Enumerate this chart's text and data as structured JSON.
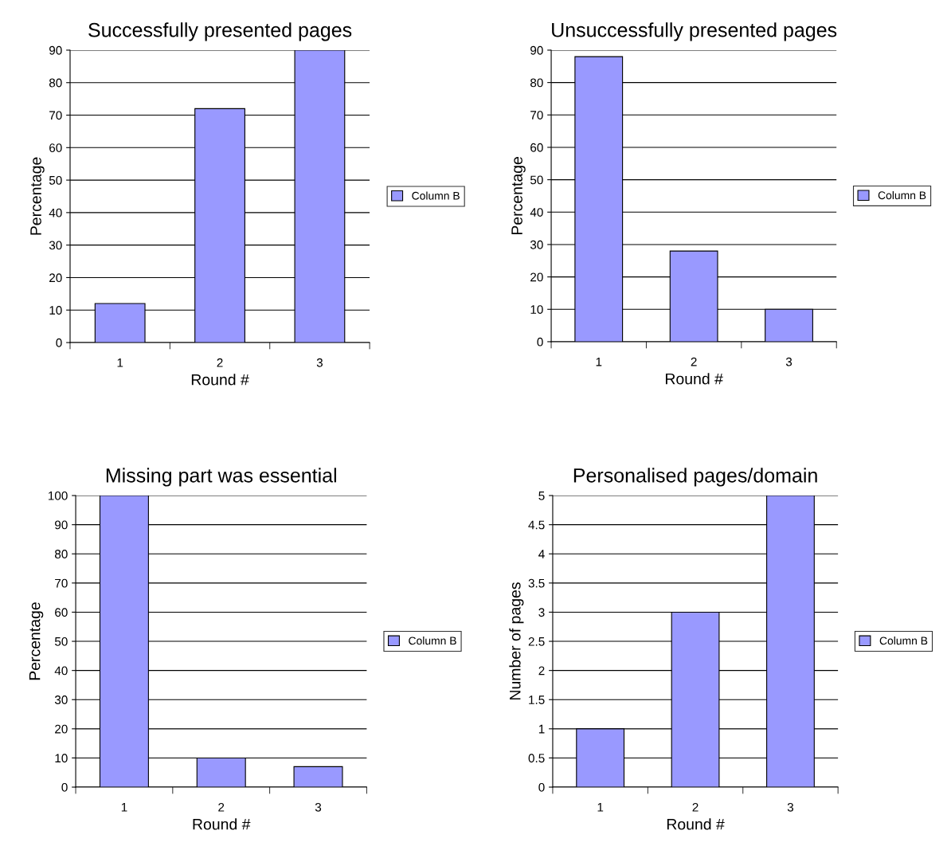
{
  "chart_data": [
    {
      "type": "bar",
      "title": "Successfully presented pages",
      "xlabel": "Round #",
      "ylabel": "Percentage",
      "categories": [
        "1",
        "2",
        "3"
      ],
      "series": [
        {
          "name": "Column B",
          "color": "#9999ff",
          "values": [
            12,
            72,
            90
          ]
        }
      ],
      "ylim": [
        0,
        90
      ],
      "yticks": [
        0,
        10,
        20,
        30,
        40,
        50,
        60,
        70,
        80,
        90
      ],
      "grid": "y",
      "legend": "right"
    },
    {
      "type": "bar",
      "title": "Unsuccessfully presented pages",
      "xlabel": "Round #",
      "ylabel": "Percentage",
      "categories": [
        "1",
        "2",
        "3"
      ],
      "series": [
        {
          "name": "Column B",
          "color": "#9999ff",
          "values": [
            88,
            28,
            10
          ]
        }
      ],
      "ylim": [
        0,
        90
      ],
      "yticks": [
        0,
        10,
        20,
        30,
        40,
        50,
        60,
        70,
        80,
        90
      ],
      "grid": "y",
      "legend": "right"
    },
    {
      "type": "bar",
      "title": "Missing part was essential",
      "xlabel": "Round #",
      "ylabel": "Percentage",
      "categories": [
        "1",
        "2",
        "3"
      ],
      "series": [
        {
          "name": "Column B",
          "color": "#9999ff",
          "values": [
            100,
            10,
            7
          ]
        }
      ],
      "ylim": [
        0,
        100
      ],
      "yticks": [
        0,
        10,
        20,
        30,
        40,
        50,
        60,
        70,
        80,
        90,
        100
      ],
      "grid": "y",
      "legend": "right"
    },
    {
      "type": "bar",
      "title": "Personalised pages/domain",
      "xlabel": "Round #",
      "ylabel": "Number of pages",
      "categories": [
        "1",
        "2",
        "3"
      ],
      "series": [
        {
          "name": "Column B",
          "color": "#9999ff",
          "values": [
            1,
            3,
            5
          ]
        }
      ],
      "ylim": [
        0,
        5
      ],
      "yticks": [
        0,
        0.5,
        1,
        1.5,
        2,
        2.5,
        3,
        3.5,
        4,
        4.5,
        5
      ],
      "grid": "y",
      "legend": "right"
    }
  ]
}
